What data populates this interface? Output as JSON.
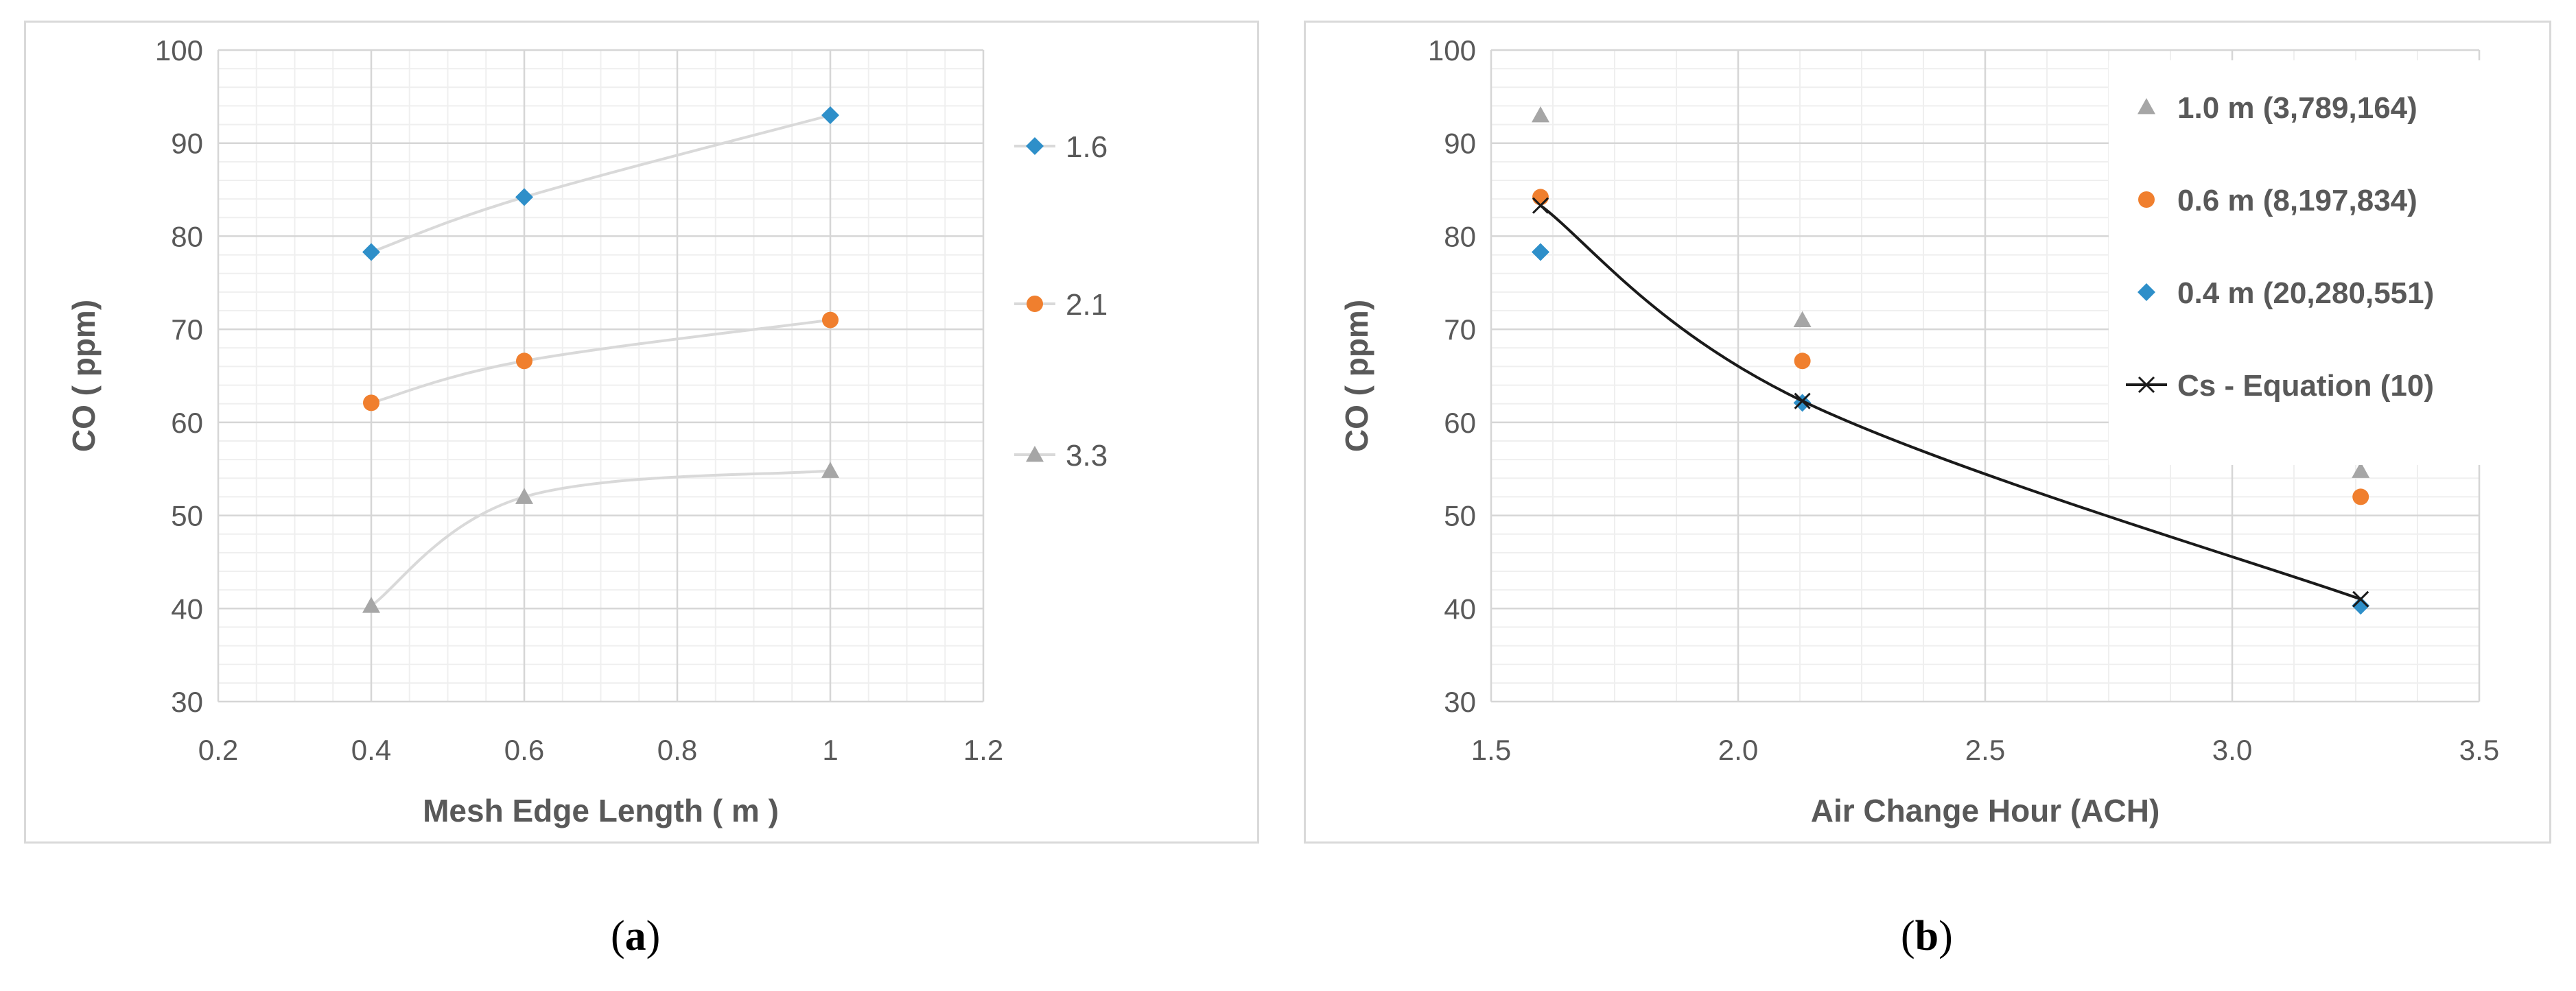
{
  "chart_data": [
    {
      "type": "scatter",
      "panel": "a",
      "xlabel": "Mesh Edge Length ( m )",
      "ylabel": "CO ( ppm)",
      "xlim": [
        0.2,
        1.2
      ],
      "ylim": [
        30,
        100
      ],
      "xticks": [
        0.2,
        0.4,
        0.6,
        0.8,
        1,
        1.2
      ],
      "xtick_labels": [
        "0.2",
        "0.4",
        "0.6",
        "0.8",
        "1",
        "1.2"
      ],
      "yticks": [
        30,
        40,
        50,
        60,
        70,
        80,
        90,
        100
      ],
      "grid": true,
      "minor_grid": true,
      "legend": "right",
      "series": [
        {
          "name": "1.6",
          "marker": "diamond",
          "color": "#2e8fc9",
          "x": [
            0.4,
            0.6,
            1.0
          ],
          "y": [
            78.3,
            84.2,
            93.0
          ]
        },
        {
          "name": "2.1",
          "marker": "circle",
          "color": "#f07f2e",
          "x": [
            0.4,
            0.6,
            1.0
          ],
          "y": [
            62.1,
            66.6,
            71.0
          ]
        },
        {
          "name": "3.3",
          "marker": "triangle",
          "color": "#a6a6a6",
          "x": [
            0.4,
            0.6,
            1.0
          ],
          "y": [
            40.3,
            52.0,
            54.8
          ]
        }
      ]
    },
    {
      "type": "scatter",
      "panel": "b",
      "xlabel": "Air Change Hour (ACH)",
      "ylabel": "CO  ( ppm)",
      "xlim": [
        1.5,
        3.5
      ],
      "ylim": [
        30,
        100
      ],
      "xticks": [
        1.5,
        2.0,
        2.5,
        3.0,
        3.5
      ],
      "xtick_labels": [
        "1.5",
        "2.0",
        "2.5",
        "3.0",
        "3.5"
      ],
      "yticks": [
        30,
        40,
        50,
        60,
        70,
        80,
        90,
        100
      ],
      "grid": true,
      "minor_grid": true,
      "legend": "top-right",
      "series": [
        {
          "name": "1.0 m  (3,789,164)",
          "marker": "triangle",
          "color": "#a6a6a6",
          "x": [
            1.6,
            2.13,
            3.26
          ],
          "y": [
            93.0,
            71.0,
            54.8
          ]
        },
        {
          "name": "0.6 m  (8,197,834)",
          "marker": "circle",
          "color": "#f07f2e",
          "x": [
            1.6,
            2.13,
            3.26
          ],
          "y": [
            84.2,
            66.6,
            52.0
          ]
        },
        {
          "name": "0.4 m  (20,280,551)",
          "marker": "diamond",
          "color": "#2e8fc9",
          "x": [
            1.6,
            2.13,
            3.26
          ],
          "y": [
            78.3,
            62.1,
            40.3
          ]
        },
        {
          "name": "Cs - Equation (10)",
          "marker": "x",
          "color": "#1a1a1a",
          "line": true,
          "x": [
            1.6,
            2.13,
            3.26
          ],
          "y": [
            83.3,
            62.3,
            41.0
          ]
        }
      ]
    }
  ],
  "captions": {
    "a": "a",
    "b": "b"
  }
}
